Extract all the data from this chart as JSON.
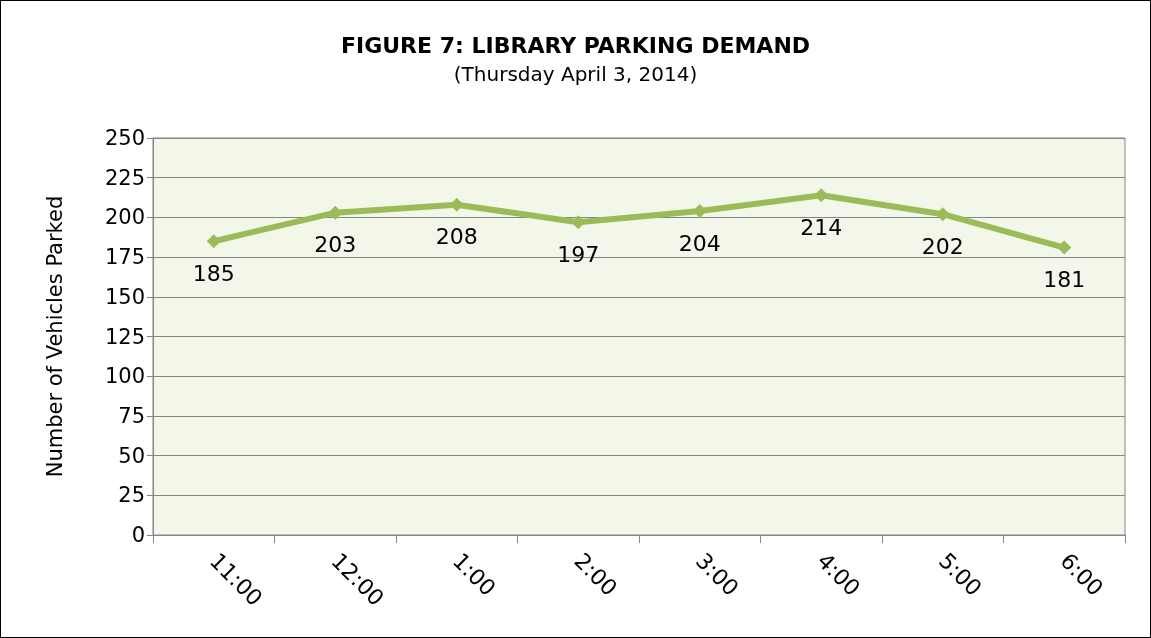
{
  "chart_data": {
    "type": "line",
    "title": "FIGURE 7: LIBRARY PARKING DEMAND",
    "subtitle": "(Thursday April 3, 2014)",
    "ylabel": "Number of Vehicles Parked",
    "categories": [
      "11:00",
      "12:00",
      "1:00",
      "2:00",
      "3:00",
      "4:00",
      "5:00",
      "6:00"
    ],
    "series": [
      {
        "color": "#9bbb59",
        "values": [
          185,
          203,
          208,
          197,
          204,
          214,
          202,
          181
        ]
      }
    ],
    "ylim": [
      0,
      250
    ],
    "yticks": [
      0,
      25,
      50,
      75,
      100,
      125,
      150,
      175,
      200,
      225,
      250
    ],
    "grid": "y",
    "marker": "diamond",
    "line_style": "solid",
    "data_labels": true
  }
}
